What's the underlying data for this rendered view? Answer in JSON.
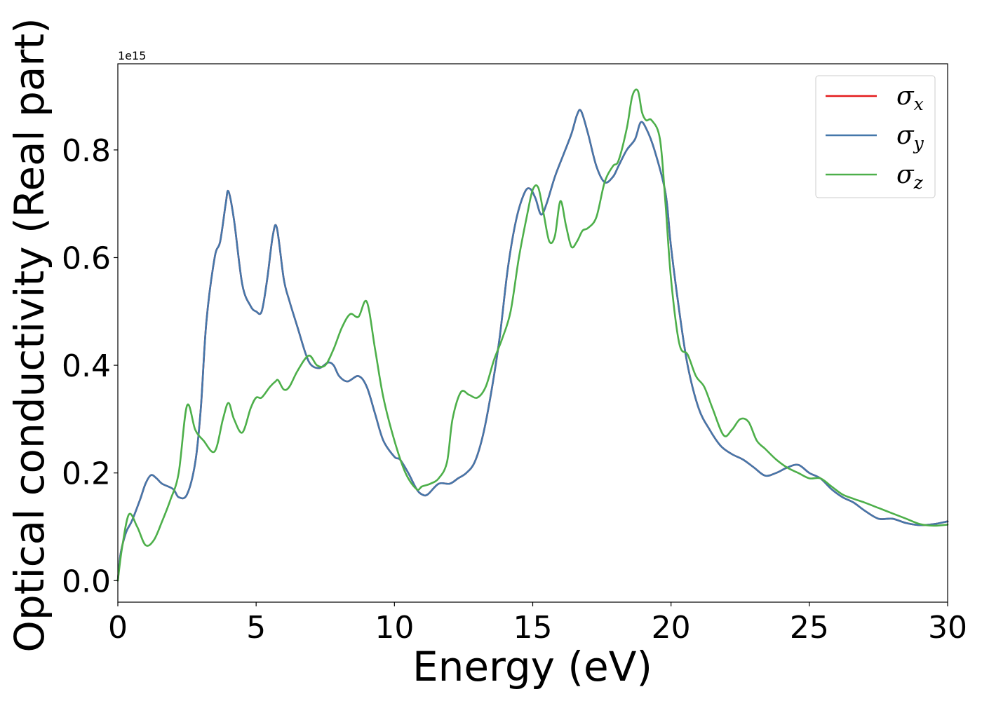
{
  "chart_data": {
    "type": "line",
    "xlabel": "Energy (eV)",
    "ylabel": "Optical conductivity (Real part)",
    "y_offset_label": "1e15",
    "xlim": [
      0,
      30
    ],
    "ylim": [
      -0.04,
      0.96
    ],
    "xticks": [
      0,
      5,
      10,
      15,
      20,
      25,
      30
    ],
    "xtick_labels": [
      "0",
      "5",
      "10",
      "15",
      "20",
      "25",
      "30"
    ],
    "yticks": [
      0.0,
      0.2,
      0.4,
      0.6,
      0.8
    ],
    "ytick_labels": [
      "0.0",
      "0.2",
      "0.4",
      "0.6",
      "0.8"
    ],
    "grid": false,
    "legend_position": "top-right",
    "series": [
      {
        "name": "σx",
        "color": "#e41a1c",
        "x": [
          0,
          0.1,
          0.3,
          0.5,
          0.8,
          1.0,
          1.2,
          1.4,
          1.6,
          2.0,
          2.2,
          2.5,
          2.8,
          3.0,
          3.2,
          3.5,
          3.7,
          3.9,
          4.0,
          4.2,
          4.5,
          4.8,
          5.0,
          5.2,
          5.4,
          5.6,
          5.75,
          6.0,
          6.2,
          6.5,
          6.8,
          7.0,
          7.3,
          7.6,
          7.8,
          8.0,
          8.3,
          8.7,
          9.0,
          9.3,
          9.6,
          10.0,
          10.2,
          10.5,
          10.8,
          11.0,
          11.2,
          11.6,
          12.0,
          12.3,
          12.6,
          12.9,
          13.2,
          13.5,
          13.8,
          14.1,
          14.4,
          14.7,
          14.9,
          15.1,
          15.3,
          15.5,
          15.8,
          16.1,
          16.4,
          16.6,
          16.75,
          17.0,
          17.3,
          17.6,
          17.9,
          18.1,
          18.4,
          18.7,
          18.9,
          19.1,
          19.4,
          19.8,
          20.0,
          20.3,
          20.6,
          21.0,
          21.4,
          21.8,
          22.2,
          22.6,
          23.0,
          23.4,
          23.8,
          24.2,
          24.6,
          25.0,
          25.4,
          25.8,
          26.2,
          26.6,
          27.0,
          27.5,
          28.0,
          28.5,
          29.0,
          29.5,
          30.0
        ],
        "y": [
          0,
          0.05,
          0.09,
          0.11,
          0.15,
          0.18,
          0.196,
          0.19,
          0.18,
          0.17,
          0.155,
          0.16,
          0.22,
          0.32,
          0.48,
          0.6,
          0.63,
          0.7,
          0.723,
          0.67,
          0.55,
          0.51,
          0.5,
          0.5,
          0.56,
          0.64,
          0.655,
          0.56,
          0.52,
          0.47,
          0.42,
          0.4,
          0.395,
          0.405,
          0.4,
          0.38,
          0.37,
          0.38,
          0.36,
          0.31,
          0.26,
          0.23,
          0.225,
          0.2,
          0.17,
          0.16,
          0.16,
          0.18,
          0.18,
          0.19,
          0.2,
          0.22,
          0.27,
          0.35,
          0.45,
          0.58,
          0.67,
          0.72,
          0.728,
          0.71,
          0.68,
          0.7,
          0.75,
          0.79,
          0.83,
          0.865,
          0.872,
          0.83,
          0.77,
          0.74,
          0.75,
          0.77,
          0.8,
          0.82,
          0.851,
          0.84,
          0.8,
          0.72,
          0.62,
          0.5,
          0.4,
          0.32,
          0.28,
          0.25,
          0.235,
          0.225,
          0.21,
          0.195,
          0.2,
          0.21,
          0.215,
          0.2,
          0.19,
          0.17,
          0.155,
          0.145,
          0.13,
          0.115,
          0.115,
          0.107,
          0.103,
          0.105,
          0.11
        ]
      },
      {
        "name": "σy",
        "color": "#4477aa",
        "x": [
          0,
          0.1,
          0.3,
          0.5,
          0.8,
          1.0,
          1.2,
          1.4,
          1.6,
          2.0,
          2.2,
          2.5,
          2.8,
          3.0,
          3.2,
          3.5,
          3.7,
          3.9,
          4.0,
          4.2,
          4.5,
          4.8,
          5.0,
          5.2,
          5.4,
          5.6,
          5.75,
          6.0,
          6.2,
          6.5,
          6.8,
          7.0,
          7.3,
          7.6,
          7.8,
          8.0,
          8.3,
          8.7,
          9.0,
          9.3,
          9.6,
          10.0,
          10.2,
          10.5,
          10.8,
          11.0,
          11.2,
          11.6,
          12.0,
          12.3,
          12.6,
          12.9,
          13.2,
          13.5,
          13.8,
          14.1,
          14.4,
          14.7,
          14.9,
          15.1,
          15.3,
          15.5,
          15.8,
          16.1,
          16.4,
          16.6,
          16.75,
          17.0,
          17.3,
          17.6,
          17.9,
          18.1,
          18.4,
          18.7,
          18.9,
          19.1,
          19.4,
          19.8,
          20.0,
          20.3,
          20.6,
          21.0,
          21.4,
          21.8,
          22.2,
          22.6,
          23.0,
          23.4,
          23.8,
          24.2,
          24.6,
          25.0,
          25.4,
          25.8,
          26.2,
          26.6,
          27.0,
          27.5,
          28.0,
          28.5,
          29.0,
          29.5,
          30.0
        ],
        "y": [
          0,
          0.05,
          0.09,
          0.11,
          0.15,
          0.18,
          0.196,
          0.19,
          0.18,
          0.17,
          0.155,
          0.16,
          0.22,
          0.32,
          0.48,
          0.6,
          0.63,
          0.7,
          0.723,
          0.67,
          0.55,
          0.51,
          0.5,
          0.5,
          0.56,
          0.64,
          0.655,
          0.56,
          0.52,
          0.47,
          0.42,
          0.4,
          0.395,
          0.405,
          0.4,
          0.38,
          0.37,
          0.38,
          0.36,
          0.31,
          0.26,
          0.23,
          0.225,
          0.2,
          0.17,
          0.16,
          0.16,
          0.18,
          0.18,
          0.19,
          0.2,
          0.22,
          0.27,
          0.35,
          0.45,
          0.58,
          0.67,
          0.72,
          0.728,
          0.71,
          0.68,
          0.7,
          0.75,
          0.79,
          0.83,
          0.865,
          0.872,
          0.83,
          0.77,
          0.74,
          0.75,
          0.77,
          0.8,
          0.82,
          0.851,
          0.84,
          0.8,
          0.72,
          0.62,
          0.5,
          0.4,
          0.32,
          0.28,
          0.25,
          0.235,
          0.225,
          0.21,
          0.195,
          0.2,
          0.21,
          0.215,
          0.2,
          0.19,
          0.17,
          0.155,
          0.145,
          0.13,
          0.115,
          0.115,
          0.107,
          0.103,
          0.105,
          0.11
        ]
      },
      {
        "name": "σz",
        "color": "#4daf4a",
        "x": [
          0,
          0.15,
          0.4,
          0.7,
          1.0,
          1.3,
          1.6,
          1.9,
          2.2,
          2.5,
          2.8,
          3.1,
          3.5,
          3.8,
          4.0,
          4.2,
          4.5,
          4.8,
          5.0,
          5.2,
          5.5,
          5.7,
          5.8,
          6.0,
          6.2,
          6.5,
          6.9,
          7.2,
          7.5,
          7.8,
          8.1,
          8.4,
          8.7,
          9.0,
          9.3,
          9.6,
          10.0,
          10.4,
          10.8,
          11.0,
          11.3,
          11.6,
          11.9,
          12.1,
          12.4,
          12.7,
          13.0,
          13.3,
          13.6,
          13.9,
          14.2,
          14.5,
          14.8,
          15.0,
          15.2,
          15.4,
          15.6,
          15.8,
          16.0,
          16.2,
          16.4,
          16.6,
          16.8,
          17.0,
          17.3,
          17.6,
          17.9,
          18.1,
          18.4,
          18.6,
          18.8,
          18.95,
          19.1,
          19.3,
          19.6,
          19.8,
          20.0,
          20.3,
          20.6,
          20.9,
          21.2,
          21.5,
          21.9,
          22.2,
          22.5,
          22.8,
          23.1,
          23.4,
          23.8,
          24.2,
          24.6,
          25.0,
          25.4,
          25.8,
          26.2,
          26.6,
          27.0,
          27.5,
          28.0,
          28.5,
          29.0,
          29.5,
          30.0
        ],
        "y": [
          0,
          0.06,
          0.123,
          0.1,
          0.066,
          0.075,
          0.11,
          0.15,
          0.2,
          0.325,
          0.28,
          0.26,
          0.24,
          0.3,
          0.33,
          0.3,
          0.275,
          0.32,
          0.34,
          0.34,
          0.36,
          0.37,
          0.372,
          0.355,
          0.36,
          0.39,
          0.418,
          0.4,
          0.4,
          0.43,
          0.47,
          0.495,
          0.49,
          0.518,
          0.43,
          0.34,
          0.26,
          0.2,
          0.17,
          0.175,
          0.18,
          0.19,
          0.22,
          0.3,
          0.35,
          0.345,
          0.34,
          0.36,
          0.41,
          0.45,
          0.5,
          0.6,
          0.68,
          0.726,
          0.73,
          0.68,
          0.63,
          0.64,
          0.705,
          0.66,
          0.62,
          0.63,
          0.65,
          0.655,
          0.675,
          0.74,
          0.77,
          0.78,
          0.84,
          0.9,
          0.91,
          0.87,
          0.855,
          0.855,
          0.82,
          0.7,
          0.56,
          0.44,
          0.42,
          0.38,
          0.36,
          0.32,
          0.27,
          0.28,
          0.3,
          0.295,
          0.26,
          0.245,
          0.225,
          0.21,
          0.2,
          0.19,
          0.19,
          0.175,
          0.16,
          0.152,
          0.145,
          0.135,
          0.125,
          0.115,
          0.105,
          0.102,
          0.104
        ]
      }
    ]
  }
}
